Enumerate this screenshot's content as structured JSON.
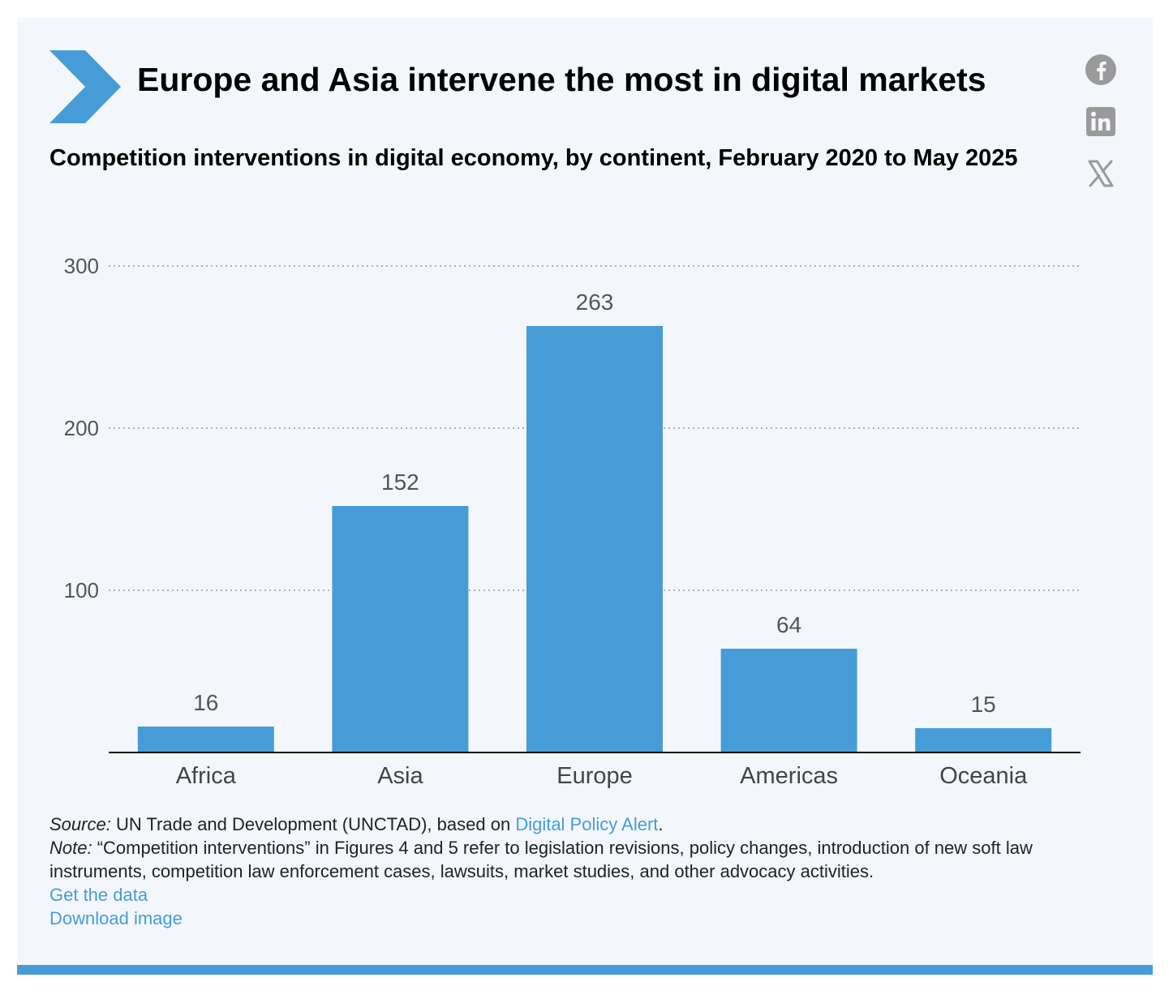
{
  "header": {
    "title": "Europe and Asia intervene the most in digital markets",
    "subtitle": "Competition interventions in digital economy, by continent, February 2020 to May 2025"
  },
  "social": {
    "icons": [
      "facebook-icon",
      "linkedin-icon",
      "x-icon"
    ]
  },
  "colors": {
    "accent": "#479cd8",
    "bar": "#479cd8",
    "card_background": "#f3f7fc",
    "gridline": "#9a9a9a",
    "axis_text": "#555555",
    "social_icon": "#9a9a9a"
  },
  "chart_data": {
    "type": "bar",
    "categories": [
      "Africa",
      "Asia",
      "Europe",
      "Americas",
      "Oceania"
    ],
    "values": [
      16,
      152,
      263,
      64,
      15
    ],
    "data_labels": [
      "16",
      "152",
      "263",
      "64",
      "15"
    ],
    "title": "",
    "xlabel": "",
    "ylabel": "",
    "ylim": [
      0,
      300
    ],
    "yticks": [
      100,
      200,
      300
    ],
    "ytick_labels": [
      "100",
      "200",
      "300"
    ],
    "grid": true,
    "legend": "none"
  },
  "footer": {
    "source_label": "Source:",
    "source_text": " UN Trade and Development (UNCTAD), based on ",
    "source_link": "Digital Policy Alert",
    "source_end": ".",
    "note_label": "Note:",
    "note_text": " “Competition interventions” in Figures 4 and 5 refer to legislation revisions, policy changes, introduction of new soft law instruments, competition law enforcement cases, lawsuits, market studies, and other advocacy activities.",
    "get_data_label": "Get the data",
    "download_label": "Download image"
  }
}
